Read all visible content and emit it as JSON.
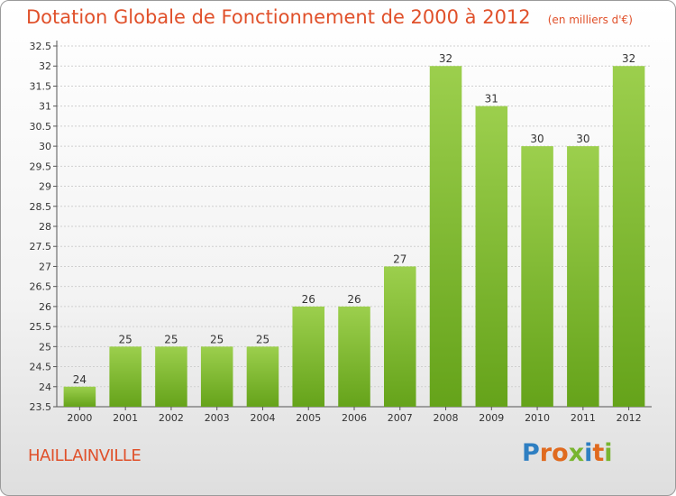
{
  "title": "Dotation Globale de Fonctionnement de 2000 à 2012",
  "unit_note": "(en milliers d'€)",
  "commune": "HAILLAINVILLE",
  "logo": {
    "text": "Proxiti",
    "letters": [
      {
        "ch": "P",
        "color": "#2e7fc2"
      },
      {
        "ch": "r",
        "color": "#e06a1f"
      },
      {
        "ch": "o",
        "color": "#e06a1f"
      },
      {
        "ch": "x",
        "color": "#79b530"
      },
      {
        "ch": "i",
        "color": "#2e7fc2"
      },
      {
        "ch": "t",
        "color": "#e06a1f"
      },
      {
        "ch": "i",
        "color": "#79b530"
      }
    ]
  },
  "colors": {
    "accent": "#e0502a",
    "bar_top": "#9ccf4d",
    "bar_bottom": "#65a31a",
    "grid": "#cfcfcf",
    "axis": "#555555"
  },
  "chart_data": {
    "type": "bar",
    "categories": [
      "2000",
      "2001",
      "2002",
      "2003",
      "2004",
      "2005",
      "2006",
      "2007",
      "2008",
      "2009",
      "2010",
      "2011",
      "2012"
    ],
    "values": [
      24,
      25,
      25,
      25,
      25,
      26,
      26,
      27,
      32,
      31,
      30,
      30,
      32
    ],
    "data_labels": [
      "24",
      "25",
      "25",
      "25",
      "25",
      "26",
      "26",
      "27",
      "32",
      "31",
      "30",
      "30",
      "32"
    ],
    "ylim": [
      23.5,
      32.5
    ],
    "yticks": [
      "23.5",
      "24",
      "24.5",
      "25",
      "25.5",
      "26",
      "26.5",
      "27",
      "27.5",
      "28",
      "28.5",
      "29",
      "29.5",
      "30",
      "30.5",
      "31",
      "31.5",
      "32",
      "32.5"
    ],
    "grid": true,
    "xlabel": "",
    "ylabel": ""
  }
}
